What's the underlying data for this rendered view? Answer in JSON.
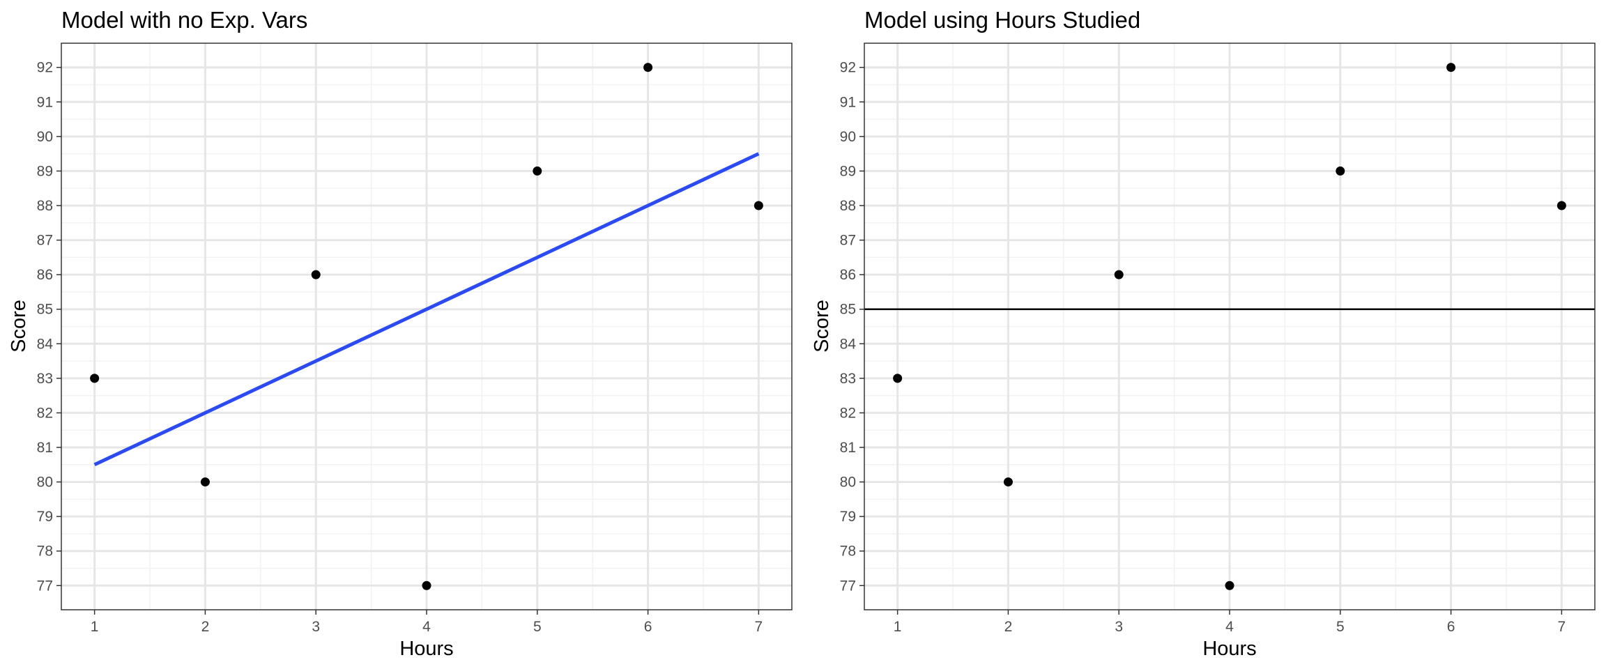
{
  "chart_data": [
    {
      "type": "scatter",
      "title": "Model with no Exp. Vars",
      "xlabel": "Hours",
      "ylabel": "Score",
      "xlim": [
        0.7,
        7.3
      ],
      "ylim": [
        76.3,
        92.7
      ],
      "xticks": [
        1,
        2,
        3,
        4,
        5,
        6,
        7
      ],
      "yticks": [
        77,
        78,
        79,
        80,
        81,
        82,
        83,
        84,
        85,
        86,
        87,
        88,
        89,
        90,
        91,
        92
      ],
      "grid": true,
      "points": {
        "x": [
          1,
          2,
          3,
          4,
          5,
          6,
          7
        ],
        "y": [
          83,
          80,
          86,
          77,
          89,
          92,
          88
        ],
        "color": "#000000"
      },
      "fit_line": {
        "x": [
          1,
          7
        ],
        "y": [
          80.5,
          89.5
        ],
        "color": "#2B4BF0"
      }
    },
    {
      "type": "scatter",
      "title": "Model using Hours Studied",
      "xlabel": "Hours",
      "ylabel": "Score",
      "xlim": [
        0.7,
        7.3
      ],
      "ylim": [
        76.3,
        92.7
      ],
      "xticks": [
        1,
        2,
        3,
        4,
        5,
        6,
        7
      ],
      "yticks": [
        77,
        78,
        79,
        80,
        81,
        82,
        83,
        84,
        85,
        86,
        87,
        88,
        89,
        90,
        91,
        92
      ],
      "grid": true,
      "points": {
        "x": [
          1,
          2,
          3,
          4,
          5,
          6,
          7
        ],
        "y": [
          83,
          80,
          86,
          77,
          89,
          92,
          88
        ],
        "color": "#000000"
      },
      "hline": {
        "y": 85,
        "color": "#000000"
      }
    }
  ]
}
